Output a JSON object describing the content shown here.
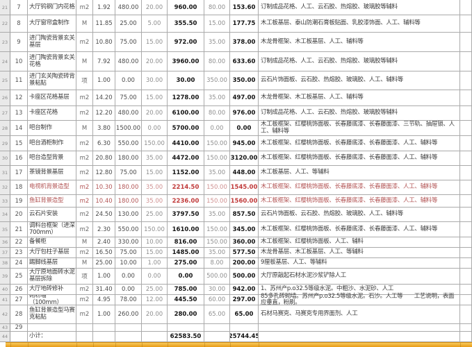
{
  "sheet": {
    "rows": [
      {
        "excel": "21",
        "no": "7",
        "desc": "大厅钨钢门内花格",
        "unit": "m2",
        "qty": "1.92",
        "p1": "480.00",
        "p2": "20.00",
        "t1": "960.00",
        "p3": "80.00",
        "t2": "153.60",
        "remark": "订制成品花格、人工、云石胶、热熔胶、玻璃胶等辅料",
        "red": false
      },
      {
        "excel": "22",
        "no": "8",
        "desc": "大厅窗帘盒制作",
        "unit": "M",
        "qty": "11.85",
        "p1": "25.00",
        "p2": "5.00",
        "t1": "355.50",
        "p3": "15.00",
        "t2": "177.75",
        "remark": "木工板基层、泰山防潮石膏板贴面、乳胶漆饰面、人工、辅料等",
        "red": false
      },
      {
        "excel": "23",
        "no": "9",
        "desc": "进门陶瓷背景玄关基层",
        "unit": "m2",
        "qty": "10.80",
        "p1": "75.00",
        "p2": "15.00",
        "t1": "972.00",
        "p3": "35.00",
        "t2": "378.00",
        "remark": "木龙骨框架、木工板基层、人工、辅料等",
        "red": false
      },
      {
        "excel": "24",
        "no": "10",
        "desc": "进门陶瓷背景玄关花格",
        "unit": "M",
        "qty": "7.92",
        "p1": "480.00",
        "p2": "20.00",
        "t1": "3960.00",
        "p3": "80.00",
        "t2": "633.60",
        "remark": "订制成品花格、人工、云石胶、热熔胶、玻璃胶等辅料",
        "red": false
      },
      {
        "excel": "25",
        "no": "11",
        "desc": "进门玄关陶瓷砖背景粘贴",
        "unit": "项",
        "qty": "1.00",
        "p1": "0.00",
        "p2": "30.00",
        "t1": "30.00",
        "p3": "350.00",
        "t2": "350.00",
        "remark": "云石片饰面板、云石胶、热熔胶、玻璃胶、人工、辅料等",
        "red": false
      },
      {
        "excel": "26",
        "no": "12",
        "desc": "卡座区花格基层",
        "unit": "m2",
        "qty": "14.20",
        "p1": "75.00",
        "p2": "15.00",
        "t1": "1278.00",
        "p3": "35.00",
        "t2": "497.00",
        "remark": "木龙骨框架、木工板基层、人工、辅料等",
        "red": false
      },
      {
        "excel": "27",
        "no": "13",
        "desc": "卡座区花格",
        "unit": "m2",
        "qty": "12.20",
        "p1": "480.00",
        "p2": "20.00",
        "t1": "6100.00",
        "p3": "80.00",
        "t2": "976.00",
        "remark": "订制成品花格、人工、云石胶、热熔胶、玻璃胶等辅料",
        "red": false
      },
      {
        "excel": "28",
        "no": "14",
        "desc": "吧台制作",
        "unit": "M",
        "qty": "3.80",
        "p1": "1500.00",
        "p2": "0.00",
        "t1": "5700.00",
        "p3": "0.00",
        "t2": "0.00",
        "remark": "木工板框架、红樱桃饰面板、长春藤底漆、长春藤面漆、三节轨、抽屉锁、人工、辅料等",
        "red": false
      },
      {
        "excel": "29",
        "no": "15",
        "desc": "吧台酒柜制作",
        "unit": "m2",
        "qty": "6.30",
        "p1": "550.00",
        "p2": "150.00",
        "t1": "4410.00",
        "p3": "150.00",
        "t2": "945.00",
        "remark": "木工板框架、红樱桃饰面板、长春藤底漆、长春藤面漆、人工、辅料等",
        "red": false
      },
      {
        "excel": "30",
        "no": "16",
        "desc": "吧台造型背景",
        "unit": "m2",
        "qty": "20.80",
        "p1": "180.00",
        "p2": "35.00",
        "t1": "4472.00",
        "p3": "150.00",
        "t2": "3120.00",
        "remark": "木工板框架、红樱桃饰面板、长春藤底漆、长春藤面漆、人工、辅料等",
        "red": false
      },
      {
        "excel": "31",
        "no": "17",
        "desc": "茶镜背景基层",
        "unit": "m2",
        "qty": "12.80",
        "p1": "75.00",
        "p2": "15.00",
        "t1": "1152.00",
        "p3": "35.00",
        "t2": "448.00",
        "remark": "木工板基层、人工、等辅料",
        "red": false
      },
      {
        "excel": "32",
        "no": "18",
        "desc": "电视机背景造型",
        "unit": "m2",
        "qty": "10.30",
        "p1": "180.00",
        "p2": "35.00",
        "t1": "2214.50",
        "p3": "150.00",
        "t2": "1545.00",
        "remark": "木工板框架、红樱桃饰面板、长春藤底漆、长春藤面漆、人工、辅料等",
        "red": true
      },
      {
        "excel": "33",
        "no": "19",
        "desc": "鱼缸背景造型",
        "unit": "m2",
        "qty": "10.40",
        "p1": "180.00",
        "p2": "35.00",
        "t1": "2236.00",
        "p3": "150.00",
        "t2": "1560.00",
        "remark": "木工板框架、红樱桃饰面板、长春藤底漆、长春藤面漆、人工、辅料等",
        "red": true
      },
      {
        "excel": "34",
        "no": "20",
        "desc": "云石片安装",
        "unit": "m2",
        "qty": "24.50",
        "p1": "130.00",
        "p2": "25.00",
        "t1": "3797.50",
        "p3": "35.00",
        "t2": "857.50",
        "remark": "云石片饰面板、云石胶、热熔胶、玻璃胶、人工、辅料等",
        "red": false
      },
      {
        "excel": "35",
        "no": "21",
        "desc": "调料台框架（进深700mm）",
        "unit": "m2",
        "qty": "2.30",
        "p1": "550.00",
        "p2": "150.00",
        "t1": "1610.00",
        "p3": "150.00",
        "t2": "345.00",
        "remark": "木工板框架、红樱桃饰面板、长春藤底漆、长春藤面漆、人工、辅料等",
        "red": false
      },
      {
        "excel": "36",
        "no": "22",
        "desc": "备餐柜",
        "unit": "M",
        "qty": "2.40",
        "p1": "330.00",
        "p2": "10.00",
        "t1": "816.00",
        "p3": "150.00",
        "t2": "360.00",
        "remark": "木工板框架、红樱桃饰面板、人工、辅料",
        "red": false
      },
      {
        "excel": "37",
        "no": "23",
        "desc": "大厅包柱子基层",
        "unit": "m2",
        "qty": "16.50",
        "p1": "75.00",
        "p2": "15.00",
        "t1": "1485.00",
        "p3": "35.00",
        "t2": "577.50",
        "remark": "木龙骨基层、木工板基层、人工、等辅料",
        "red": false
      },
      {
        "excel": "38",
        "no": "24",
        "desc": "踢脚线基层",
        "unit": "M",
        "qty": "25.00",
        "p1": "10.00",
        "p2": "1.00",
        "t1": "275.00",
        "p3": "8.00",
        "t2": "200.00",
        "remark": "9厘板基层、人工、等辅料",
        "red": false
      },
      {
        "excel": "39",
        "no": "25",
        "desc": "大厅原地面砖水泥基层拆除",
        "unit": "项",
        "qty": "1.00",
        "p1": "0.00",
        "p2": "0.00",
        "t1": "0.00",
        "p3": "500.00",
        "t2": "500.00",
        "remark": "大厅原敲起石材水泥沙浆铲除人工",
        "red": false
      },
      {
        "excel": "40",
        "no": "26",
        "desc": "大厅地砖修补",
        "unit": "m2",
        "qty": "31.40",
        "p1": "0.00",
        "p2": "25.00",
        "t1": "785.00",
        "p3": "30.00",
        "t2": "942.00",
        "remark": "1、苏州产p.o32.5等级水泥。中粗沙、水泥砂、人工",
        "red": false
      },
      {
        "excel": "41",
        "no": "27",
        "desc": "砌粉墙（100mm）",
        "unit": "m2",
        "qty": "4.95",
        "p1": "78.00",
        "p2": "12.00",
        "t1": "445.50",
        "p3": "60.00",
        "t2": "297.00",
        "remark": "85多孔砖砌墙。苏州产p.o32.5等级水泥。石沙。人工等　　工艺说明，表面应垂直，粉刷。",
        "red": false
      },
      {
        "excel": "42",
        "no": "28",
        "desc": "鱼缸背景造型马赛克粘贴",
        "unit": "m2",
        "qty": "1.00",
        "p1": "260.00",
        "p2": "20.00",
        "t1": "280.00",
        "p3": "65.00",
        "t2": "65.00",
        "remark": "石材马赛克、马赛克专用界面剂、人工",
        "red": false
      },
      {
        "excel": "43",
        "no": "29",
        "desc": "",
        "unit": "",
        "qty": "",
        "p1": "",
        "p2": "",
        "t1": "",
        "p3": "",
        "t2": "",
        "remark": "",
        "red": false
      }
    ],
    "subtotal": {
      "excel": "44",
      "label": "小计：",
      "material_total": "62583.50",
      "labor_total": "25744.45"
    }
  }
}
